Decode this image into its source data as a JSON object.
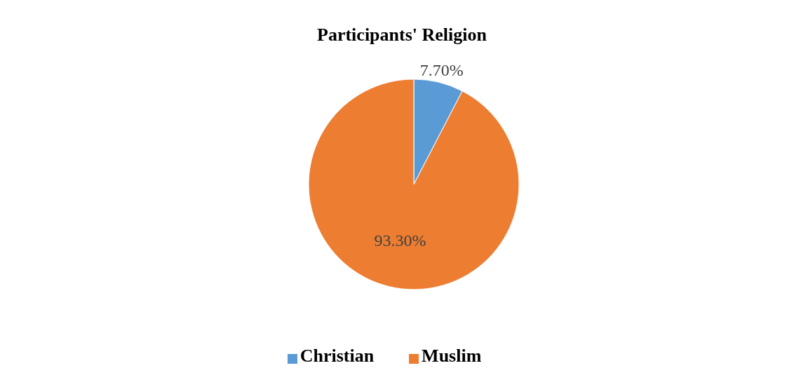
{
  "chart_data": {
    "type": "pie",
    "title": "Participants' Religion",
    "categories": [
      "Christian",
      "Muslim"
    ],
    "values": [
      7.7,
      93.3
    ],
    "colors": [
      "#5b9bd5",
      "#ed7d31"
    ],
    "value_labels": [
      "7.70%",
      "93.30%"
    ],
    "legend": "bottom"
  }
}
